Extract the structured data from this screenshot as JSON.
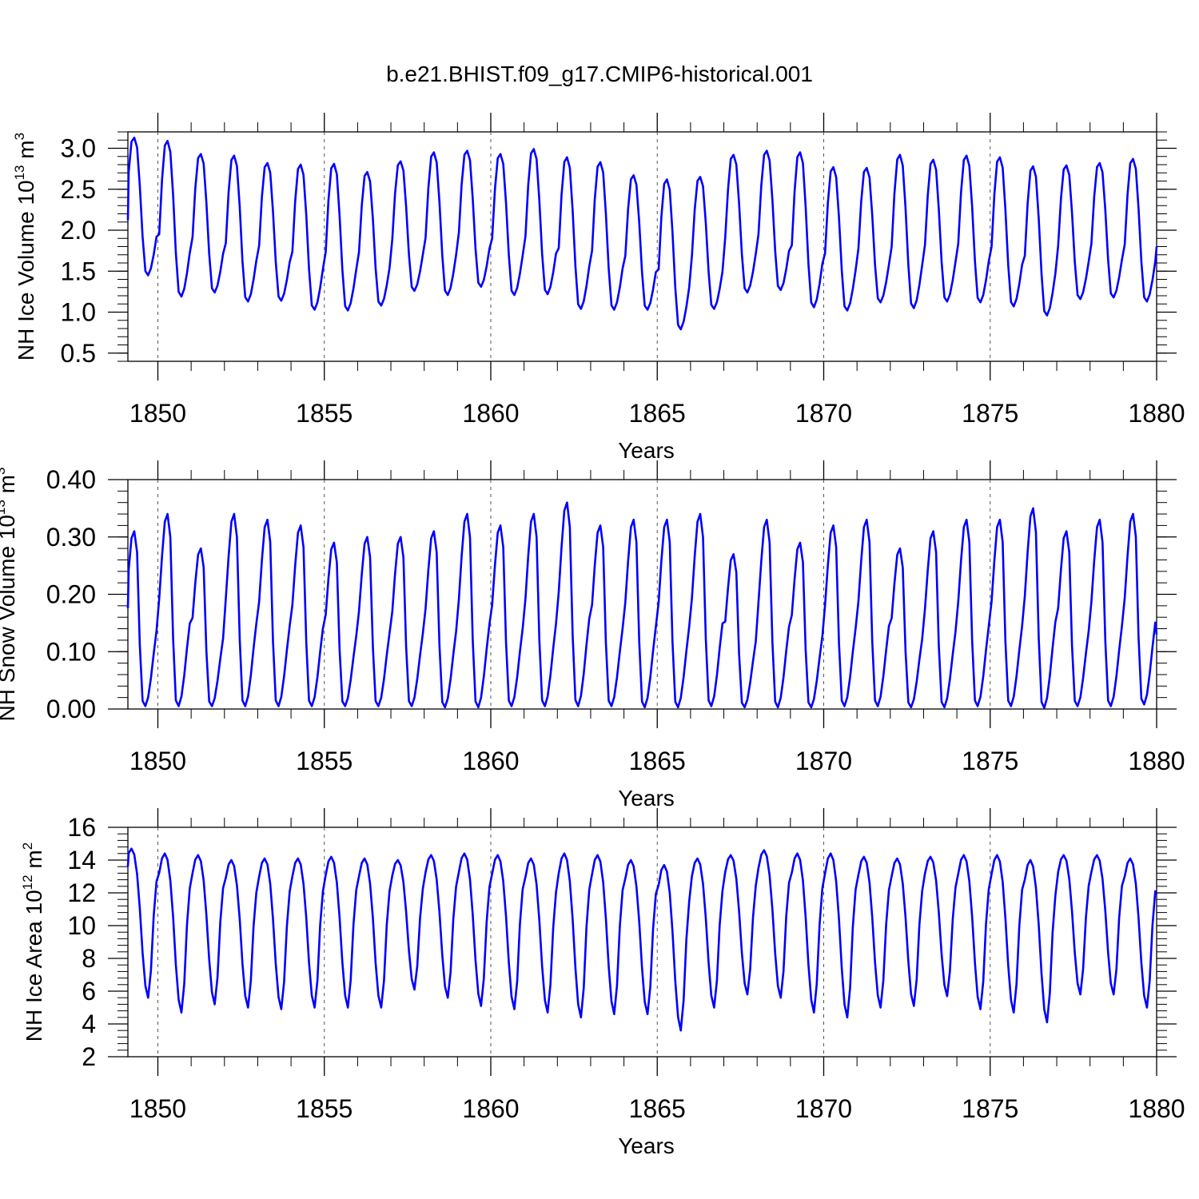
{
  "title": "b.e21.BHIST.f09_g17.CMIP6-historical.001",
  "line_color": "#0000ff",
  "chart_data": [
    {
      "type": "line",
      "id": "ice_volume",
      "ylabel": {
        "main": "NH Ice Volume 10",
        "exp": "13",
        "unit": " m",
        "unit_exp": "3"
      },
      "xlabel": "Years",
      "xlim": [
        1849.1,
        1880.0
      ],
      "ylim": [
        0.4,
        3.2
      ],
      "yticks": [
        0.5,
        1.0,
        1.5,
        2.0,
        2.5,
        3.0
      ],
      "ytick_labels": [
        "0.5",
        "1.0",
        "1.5",
        "2.0",
        "2.5",
        "3.0"
      ],
      "xticks": [
        1850,
        1855,
        1860,
        1865,
        1870,
        1875,
        1880
      ],
      "xtick_labels": [
        "1850",
        "1855",
        "1860",
        "1865",
        "1870",
        "1875",
        "1880"
      ],
      "monthly_start": 1849.0,
      "seasonal_shape": [
        0.4,
        0.75,
        0.97,
        1.0,
        0.93,
        0.65,
        0.28,
        0.03,
        0.0,
        0.05,
        0.15,
        0.28
      ],
      "annual_max": [
        3.13,
        3.09,
        2.93,
        2.91,
        2.82,
        2.8,
        2.81,
        2.71,
        2.84,
        2.95,
        2.97,
        2.93,
        2.99,
        2.89,
        2.83,
        2.67,
        2.62,
        2.65,
        2.92,
        2.97,
        2.95,
        2.77,
        2.76,
        2.92,
        2.86,
        2.91,
        2.89,
        2.78,
        2.79,
        2.82,
        2.87
      ],
      "annual_min": [
        1.45,
        1.19,
        1.24,
        1.13,
        1.14,
        1.03,
        1.02,
        1.08,
        1.26,
        1.21,
        1.31,
        1.21,
        1.22,
        1.04,
        1.03,
        1.03,
        0.79,
        1.04,
        1.24,
        1.27,
        1.06,
        1.02,
        1.12,
        1.05,
        1.13,
        1.12,
        1.07,
        0.96,
        1.16,
        1.18,
        1.13
      ],
      "last_value": 1.8
    },
    {
      "type": "line",
      "id": "snow_volume",
      "ylabel": {
        "main": "NH Snow Volume 10",
        "exp": "13",
        "unit": " m",
        "unit_exp": "3"
      },
      "xlabel": "Years",
      "xlim": [
        1849.1,
        1880.0
      ],
      "ylim": [
        0.0,
        0.4
      ],
      "yticks": [
        0.0,
        0.1,
        0.2,
        0.3,
        0.4
      ],
      "ytick_labels": [
        "0.00",
        "0.10",
        "0.20",
        "0.30",
        "0.40"
      ],
      "xticks": [
        1850,
        1855,
        1860,
        1865,
        1870,
        1875,
        1880
      ],
      "xtick_labels": [
        "1850",
        "1855",
        "1860",
        "1865",
        "1870",
        "1875",
        "1880"
      ],
      "monthly_start": 1849.0,
      "seasonal_shape": [
        0.56,
        0.78,
        0.96,
        1.0,
        0.88,
        0.35,
        0.03,
        0.0,
        0.05,
        0.16,
        0.3,
        0.43
      ],
      "annual_max": [
        0.31,
        0.34,
        0.28,
        0.34,
        0.33,
        0.32,
        0.29,
        0.3,
        0.3,
        0.31,
        0.34,
        0.32,
        0.34,
        0.36,
        0.32,
        0.33,
        0.33,
        0.34,
        0.27,
        0.33,
        0.29,
        0.32,
        0.33,
        0.28,
        0.31,
        0.33,
        0.33,
        0.35,
        0.31,
        0.33,
        0.34
      ],
      "annual_min": [
        0.005,
        0.005,
        0.005,
        0.005,
        0.005,
        0.005,
        0.005,
        0.005,
        0.005,
        0.003,
        0.003,
        0.005,
        0.005,
        0.005,
        0.005,
        0.003,
        0.003,
        0.005,
        0.003,
        0.003,
        0.003,
        0.005,
        0.005,
        0.003,
        0.003,
        0.005,
        0.005,
        0.002,
        0.005,
        0.005,
        0.008
      ],
      "last_value": 0.13
    },
    {
      "type": "line",
      "id": "ice_area",
      "ylabel": {
        "main": "NH Ice Area 10",
        "exp": "12",
        "unit": " m",
        "unit_exp": "2"
      },
      "xlabel": "Years",
      "xlim": [
        1849.1,
        1880.0
      ],
      "ylim": [
        2,
        16
      ],
      "yticks": [
        2,
        4,
        6,
        8,
        10,
        12,
        14,
        16
      ],
      "ytick_labels": [
        "2",
        "4",
        "6",
        "8",
        "10",
        "12",
        "14",
        "16"
      ],
      "xticks": [
        1850,
        1855,
        1860,
        1865,
        1870,
        1875,
        1880
      ],
      "xtick_labels": [
        "1850",
        "1855",
        "1860",
        "1865",
        "1870",
        "1875",
        "1880"
      ],
      "monthly_start": 1849.0,
      "seasonal_shape": [
        0.88,
        0.97,
        1.0,
        0.96,
        0.83,
        0.6,
        0.3,
        0.08,
        0.0,
        0.18,
        0.55,
        0.78
      ],
      "annual_max": [
        14.7,
        14.4,
        14.3,
        14.0,
        14.1,
        14.1,
        14.2,
        14.1,
        14.0,
        14.3,
        14.4,
        14.3,
        14.1,
        14.4,
        14.3,
        14.0,
        13.7,
        14.1,
        14.3,
        14.6,
        14.4,
        14.4,
        14.2,
        14.1,
        14.2,
        14.3,
        14.3,
        14.0,
        14.3,
        14.3,
        14.1
      ],
      "annual_min": [
        5.6,
        4.7,
        5.2,
        5.0,
        4.9,
        5.0,
        5.0,
        5.0,
        6.1,
        5.6,
        5.1,
        4.9,
        4.7,
        4.4,
        4.6,
        4.6,
        3.6,
        5.0,
        5.8,
        5.6,
        4.7,
        4.4,
        5.0,
        5.1,
        5.7,
        4.9,
        4.7,
        4.1,
        5.8,
        5.8,
        5.0
      ],
      "last_value": 11.9
    }
  ]
}
